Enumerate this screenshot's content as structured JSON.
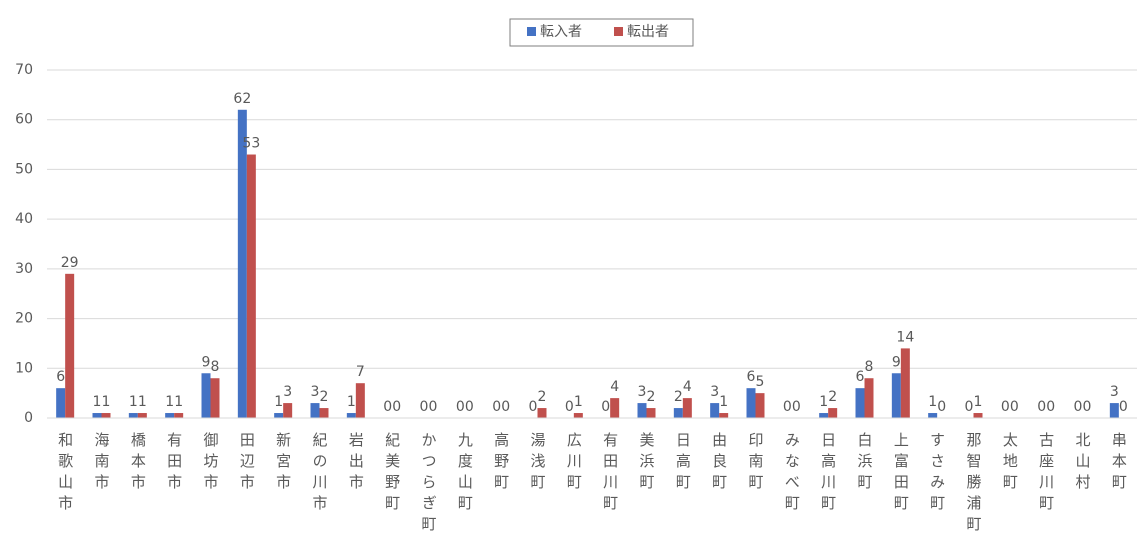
{
  "chart_data": {
    "type": "bar",
    "categories": [
      "和歌山市",
      "海南市",
      "橋本市",
      "有田市",
      "御坊市",
      "田辺市",
      "新宮市",
      "紀の川市",
      "岩出市",
      "紀美野町",
      "かつらぎ町",
      "九度山町",
      "高野町",
      "湯浅町",
      "広川町",
      "有田川町",
      "美浜町",
      "日高町",
      "由良町",
      "印南町",
      "みなべ町",
      "日高川町",
      "白浜町",
      "上富田町",
      "すさみ町",
      "那智勝浦町",
      "太地町",
      "古座川町",
      "北山村",
      "串本町"
    ],
    "series": [
      {
        "name": "転入者",
        "color": "#4472c4",
        "values": [
          6,
          1,
          1,
          1,
          9,
          62,
          1,
          3,
          1,
          0,
          0,
          0,
          0,
          0,
          0,
          0,
          3,
          2,
          3,
          6,
          0,
          1,
          6,
          9,
          1,
          0,
          0,
          0,
          0,
          3
        ]
      },
      {
        "name": "転出者",
        "color": "#c0504d",
        "values": [
          29,
          1,
          1,
          1,
          8,
          53,
          3,
          2,
          7,
          0,
          0,
          0,
          0,
          2,
          1,
          4,
          2,
          4,
          1,
          5,
          0,
          2,
          8,
          14,
          0,
          1,
          0,
          0,
          0,
          0
        ]
      }
    ],
    "ylim": [
      0,
      70
    ],
    "yticks": [
      0,
      10,
      20,
      30,
      40,
      50,
      60,
      70
    ],
    "grid": true,
    "legend": "top"
  }
}
